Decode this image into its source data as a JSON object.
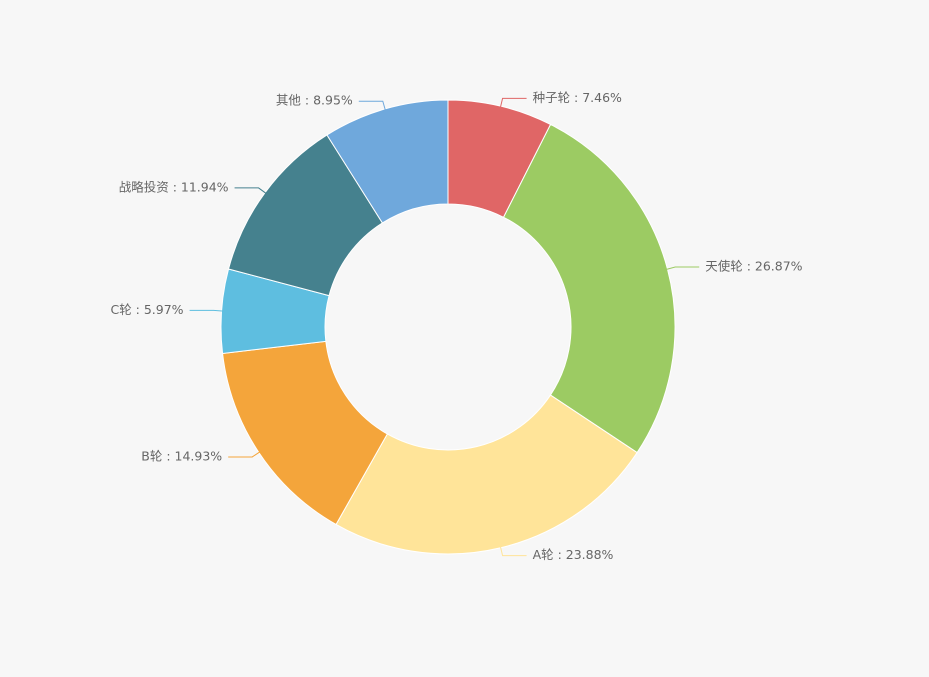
{
  "chart_data": {
    "type": "pie",
    "variant": "donut",
    "title": "",
    "legend": "none",
    "slices": [
      {
        "label": "种子轮",
        "value": 7.46,
        "display": "种子轮 : 7.46%",
        "color": "#e06666"
      },
      {
        "label": "天使轮",
        "value": 26.87,
        "display": "天使轮 : 26.87%",
        "color": "#9ccb63"
      },
      {
        "label": "A轮",
        "value": 23.88,
        "display": "A轮 : 23.88%",
        "color": "#ffe499"
      },
      {
        "label": "B轮",
        "value": 14.93,
        "display": "B轮 : 14.93%",
        "color": "#f4a53b"
      },
      {
        "label": "C轮",
        "value": 5.97,
        "display": "C轮 : 5.97%",
        "color": "#5ebee0"
      },
      {
        "label": "战略投资",
        "value": 11.94,
        "display": "战略投资 : 11.94%",
        "color": "#45818e"
      },
      {
        "label": "其他",
        "value": 8.95,
        "display": "其他 : 8.95%",
        "color": "#6fa8dc"
      }
    ]
  }
}
